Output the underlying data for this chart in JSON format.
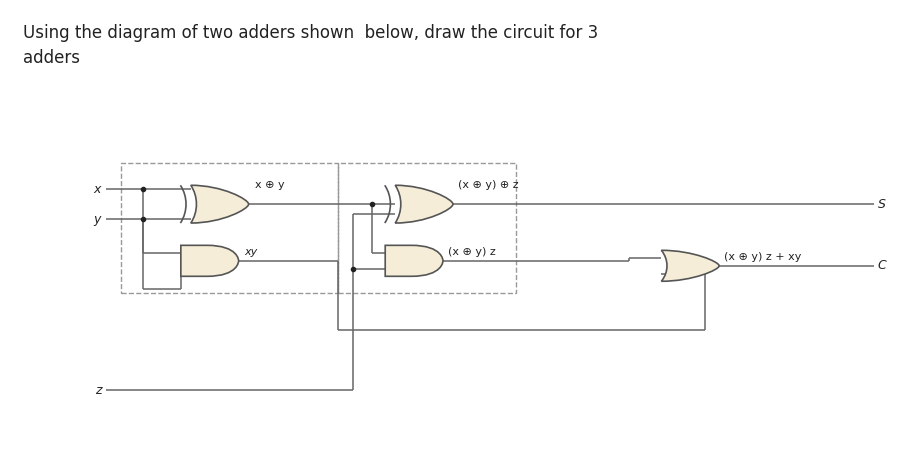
{
  "title": "Using the diagram of two adders shown  below, draw the circuit for 3\nadders",
  "title_fontsize": 12,
  "bg_color": "#ffffff",
  "gate_fill": "#f5edd8",
  "gate_edge": "#555555",
  "wire_color": "#666666",
  "dash_color": "#999999",
  "text_color": "#222222",
  "dot_color": "#222222",
  "labels": {
    "x": "x",
    "y": "y",
    "z": "z",
    "xor1": "x ⊕ y",
    "and1": "xy",
    "xor2": "(x ⊕ y) ⊕ z",
    "and2": "(x ⊕ y) z",
    "or_out": "(x ⊕ y) z + xy",
    "S": "S",
    "C": "C"
  }
}
